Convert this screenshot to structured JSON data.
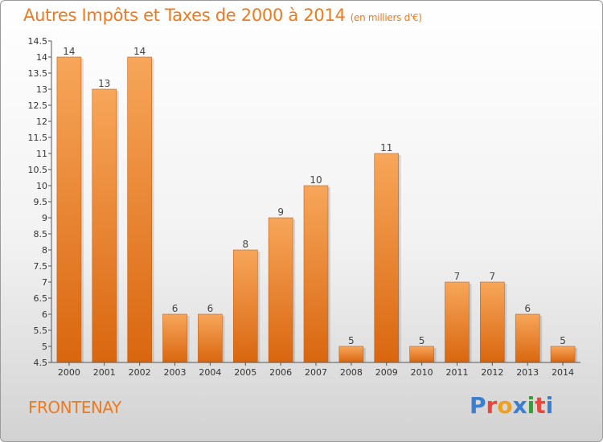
{
  "header": {
    "title": "Autres Impôts et Taxes de 2000 à 2014",
    "unit": "(en milliers d'€)"
  },
  "footer": {
    "commune": "FRONTENAY",
    "logo": "Proxiti"
  },
  "colors": {
    "accent": "#ef7a1e",
    "bar_light": "#f7a65a",
    "bar_dark": "#d9660f",
    "logo_letters": [
      "#3a7fd0",
      "#e8483b",
      "#f0a020",
      "#3a7fd0",
      "#3a9a3a",
      "#e8483b",
      "#3a7fd0"
    ]
  },
  "chart_data": {
    "type": "bar",
    "title": "Autres Impôts et Taxes de 2000 à 2014",
    "subtitle": "(en milliers d'€)",
    "xlabel": "",
    "ylabel": "",
    "categories": [
      "2000",
      "2001",
      "2002",
      "2003",
      "2004",
      "2005",
      "2006",
      "2007",
      "2008",
      "2009",
      "2010",
      "2011",
      "2012",
      "2013",
      "2014"
    ],
    "values": [
      14,
      13,
      14,
      6,
      6,
      8,
      9,
      10,
      5,
      11,
      5,
      7,
      7,
      6,
      5
    ],
    "ylim": [
      4.5,
      14.5
    ],
    "yticks": [
      "4.5",
      "5",
      "5.5",
      "6",
      "6.5",
      "7",
      "7.5",
      "8",
      "8.5",
      "9",
      "9.5",
      "10",
      "10.5",
      "11",
      "11.5",
      "12",
      "12.5",
      "13",
      "13.5",
      "14",
      "14.5"
    ],
    "grid": false,
    "legend": "none"
  }
}
